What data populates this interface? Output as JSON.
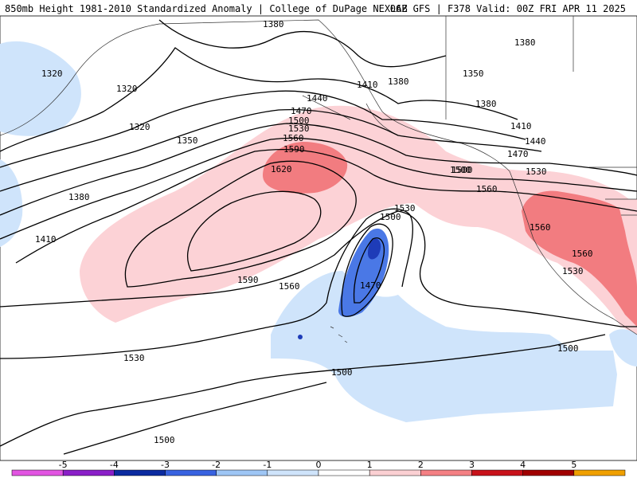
{
  "header": {
    "title_left": "850mb Height 1981-2010 Standardized Anomaly | College of DuPage NEXLAB",
    "title_right": "06Z GFS | F378 Valid: 00Z FRI APR 11 2025"
  },
  "contour_labels": [
    "1380",
    "1380",
    "1320",
    "1320",
    "1320",
    "1350",
    "1380",
    "1410",
    "1440",
    "1470",
    "1500",
    "1530",
    "1560",
    "1590",
    "1620",
    "1590",
    "1560",
    "1530",
    "1500",
    "1470",
    "1500",
    "1530",
    "1410",
    "1380",
    "1350",
    "1380",
    "1410",
    "1440",
    "1470",
    "1500",
    "1530",
    "1560",
    "1560",
    "1560",
    "1530",
    "1500",
    "1500",
    "1500"
  ],
  "colorbar": {
    "ticks": [
      "-5",
      "-4",
      "-3",
      "-2",
      "-1",
      "0",
      "1",
      "2",
      "3",
      "4",
      "5"
    ],
    "colors": {
      "neg5": "#e255e2",
      "neg4": "#8a1fc8",
      "neg3": "#0b2ba0",
      "neg2": "#3862e0",
      "neg1": "#9ec6f5",
      "neg0": "#cfe4fb",
      "pos0": "#ffffff",
      "pos1": "#fbd0d3",
      "pos2": "#f48084",
      "pos3": "#c8121a",
      "pos4": "#a00000",
      "pos5": "#f0a000"
    }
  },
  "anomaly_colors": {
    "light_red": "#fcd2d6",
    "med_red": "#f27c80",
    "light_blue": "#cfe4fb",
    "med_blue": "#4a78e6",
    "dark_blue": "#1e3cb8"
  }
}
